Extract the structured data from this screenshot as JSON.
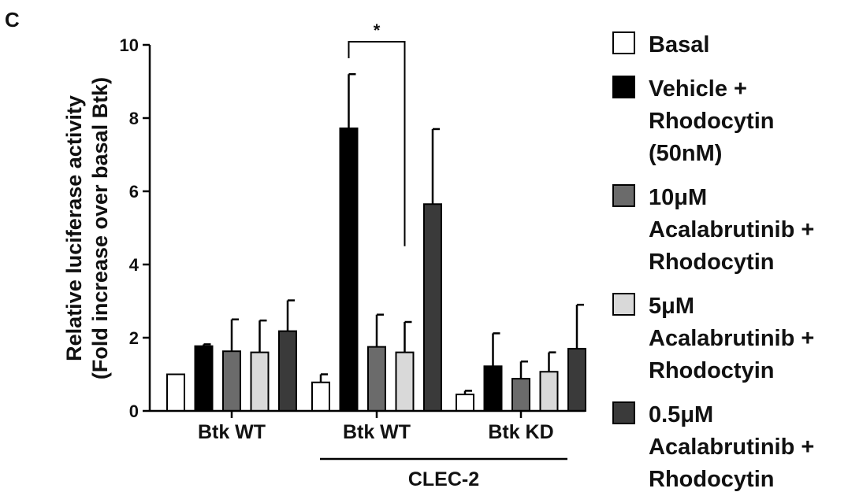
{
  "panel_label": "C",
  "chart_data": {
    "type": "bar",
    "ylabel_line1": "Relative luciferase activity",
    "ylabel_line2": "(Fold increase over basal Btk)",
    "ylim": [
      0,
      10
    ],
    "yticks": [
      "0",
      "2",
      "4",
      "6",
      "8",
      "10"
    ],
    "categories": [
      "Btk WT",
      "Btk WT",
      "Btk KD"
    ],
    "group_bracket_label": "CLEC-2",
    "significance": {
      "label": "*",
      "between": [
        [
          1,
          1
        ],
        [
          1,
          3
        ]
      ]
    },
    "series": [
      {
        "name": "Basal",
        "color": "#ffffff",
        "values": [
          1.0,
          0.78,
          0.45
        ],
        "errors": [
          0.0,
          0.22,
          0.1
        ]
      },
      {
        "name": "Vehicle + Rhodocytin (50nM)",
        "color": "#000000",
        "values": [
          1.77,
          7.72,
          1.22
        ],
        "errors": [
          0.05,
          1.48,
          0.9
        ]
      },
      {
        "name": "10μM Acalabrutinib + Rhodocytin",
        "color": "#6b6b6b",
        "values": [
          1.63,
          1.75,
          0.88
        ],
        "errors": [
          0.87,
          0.88,
          0.47
        ]
      },
      {
        "name": "5μM Acalabrutinib + Rhodoctyin",
        "color": "#d9d9d9",
        "values": [
          1.6,
          1.6,
          1.07
        ],
        "errors": [
          0.87,
          0.83,
          0.53
        ]
      },
      {
        "name": "0.5μM Acalabrutinib + Rhodocytin",
        "color": "#3a3a3a",
        "values": [
          2.18,
          5.65,
          1.7
        ],
        "errors": [
          0.84,
          2.05,
          1.2
        ]
      }
    ],
    "legend": [
      {
        "lines": [
          "Basal"
        ]
      },
      {
        "lines": [
          "Vehicle +",
          "Rhodocytin",
          "(50nM)"
        ]
      },
      {
        "lines": [
          "10μM",
          "Acalabrutinib +",
          "Rhodocytin"
        ]
      },
      {
        "lines": [
          "5μM",
          "Acalabrutinib +",
          "Rhodoctyin"
        ]
      },
      {
        "lines": [
          "0.5μM",
          "Acalabrutinib +",
          "Rhodocytin"
        ]
      }
    ],
    "grid": false,
    "legend_position": "right"
  }
}
